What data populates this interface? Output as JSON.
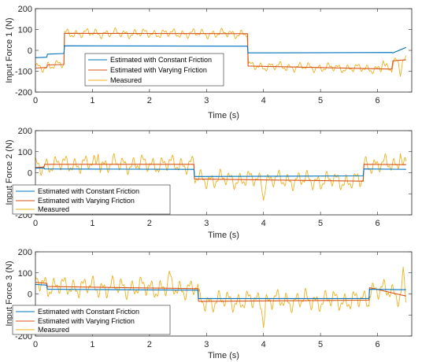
{
  "chart_data": [
    {
      "type": "line",
      "ylabel": "Input Force 1 (N)",
      "xlabel": "Time (s)",
      "xlim": [
        0,
        6.6
      ],
      "ylim": [
        -200,
        200
      ],
      "xticks": [
        0,
        1,
        2,
        3,
        4,
        5,
        6
      ],
      "yticks": [
        -200,
        -100,
        0,
        100,
        200
      ],
      "legend_location": "center",
      "series": [
        {
          "name": "Estimated with Constant Friction",
          "color": "#0072BD",
          "x": [
            0,
            0.2,
            0.21,
            0.5,
            0.51,
            3.72,
            3.73,
            6.25,
            6.27,
            6.5
          ],
          "y": [
            -35,
            -33,
            -18,
            -15,
            22,
            20,
            -12,
            -10,
            -12,
            14
          ]
        },
        {
          "name": "Estimated with Varying Friction",
          "color": "#D95319",
          "x": [
            0,
            0.2,
            0.21,
            0.5,
            0.51,
            3.72,
            3.73,
            6.25,
            6.27,
            6.5
          ],
          "y": [
            -85,
            -82,
            -70,
            -68,
            82,
            80,
            -75,
            -90,
            -50,
            -45
          ]
        },
        {
          "name": "Measured",
          "color": "#EDB120",
          "amplitude": 25,
          "spikes": [
            [
              6.4,
              -130
            ],
            [
              6.1,
              -45
            ]
          ],
          "x": [
            0,
            0.2,
            0.21,
            0.5,
            0.51,
            3.72,
            3.73,
            6.25,
            6.27,
            6.5
          ],
          "y": [
            -85,
            -82,
            -70,
            -68,
            82,
            80,
            -75,
            -90,
            -50,
            -45
          ]
        }
      ]
    },
    {
      "type": "line",
      "ylabel": "Input Force 2 (N)",
      "xlabel": "Time (s)",
      "xlim": [
        0,
        6.6
      ],
      "ylim": [
        -200,
        200
      ],
      "xticks": [
        0,
        1,
        2,
        3,
        4,
        5,
        6
      ],
      "yticks": [
        -200,
        -100,
        0,
        100,
        200
      ],
      "legend_location": "bottom-left",
      "series": [
        {
          "name": "Estimated with Constant Friction",
          "color": "#0072BD",
          "x": [
            0,
            0.15,
            0.16,
            2.78,
            2.79,
            5.75,
            5.76,
            6.5
          ],
          "y": [
            22,
            22,
            18,
            16,
            -18,
            -15,
            18,
            16
          ]
        },
        {
          "name": "Estimated with Varying Friction",
          "color": "#D95319",
          "x": [
            0,
            0.15,
            0.16,
            2.78,
            2.79,
            5.75,
            5.76,
            6.5
          ],
          "y": [
            25,
            27,
            40,
            40,
            -30,
            -40,
            40,
            38
          ]
        },
        {
          "name": "Measured",
          "color": "#EDB120",
          "amplitude": 48,
          "spikes": [
            [
              4.0,
              -140
            ],
            [
              6.4,
              100
            ],
            [
              1.1,
              95
            ]
          ],
          "x": [
            0,
            0.15,
            0.16,
            2.78,
            2.79,
            5.75,
            5.76,
            6.5
          ],
          "y": [
            25,
            27,
            40,
            40,
            -30,
            -40,
            40,
            38
          ]
        }
      ]
    },
    {
      "type": "line",
      "ylabel": "Input Force 3 (N)",
      "xlabel": "Time (s)",
      "xlim": [
        0,
        6.6
      ],
      "ylim": [
        -200,
        200
      ],
      "xticks": [
        0,
        1,
        2,
        3,
        4,
        5,
        6
      ],
      "yticks": [
        -200,
        -100,
        0,
        100,
        200
      ],
      "legend_location": "bottom-left",
      "series": [
        {
          "name": "Estimated with Constant Friction",
          "color": "#0072BD",
          "x": [
            0,
            0.2,
            0.21,
            2.85,
            2.86,
            5.85,
            5.86,
            6.5
          ],
          "y": [
            45,
            42,
            22,
            18,
            -22,
            -22,
            22,
            20
          ]
        },
        {
          "name": "Estimated with Varying Friction",
          "color": "#D95319",
          "x": [
            0,
            0.2,
            0.21,
            2.85,
            2.86,
            5.85,
            5.86,
            6.5
          ],
          "y": [
            55,
            50,
            35,
            25,
            -35,
            -30,
            30,
            -10
          ]
        },
        {
          "name": "Measured",
          "color": "#EDB120",
          "amplitude": 55,
          "spikes": [
            [
              4.0,
              -170
            ],
            [
              6.45,
              140
            ],
            [
              2.35,
              115
            ]
          ],
          "x": [
            0,
            0.2,
            0.21,
            2.85,
            2.86,
            5.85,
            5.86,
            6.5
          ],
          "y": [
            55,
            50,
            35,
            25,
            -35,
            -30,
            30,
            -10
          ]
        }
      ]
    }
  ]
}
